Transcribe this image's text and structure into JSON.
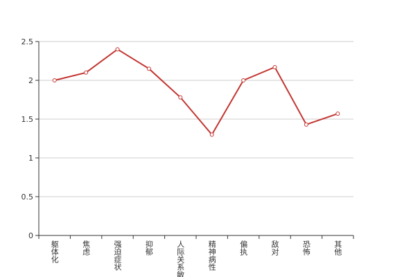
{
  "chart_data": {
    "type": "line",
    "categories": [
      "躯体化",
      "焦虑",
      "强迫症状",
      "抑郁",
      "人际关系敏感",
      "精神病性",
      "偏执",
      "敌对",
      "恐怖",
      "其他"
    ],
    "values": [
      2.0,
      2.1,
      2.4,
      2.15,
      1.78,
      1.3,
      2.0,
      2.17,
      1.43,
      1.57
    ],
    "color": "#c23531",
    "ylim": [
      0,
      2.5
    ],
    "yticks": [
      0,
      0.5,
      1,
      1.5,
      2,
      2.5
    ],
    "grid": true
  }
}
